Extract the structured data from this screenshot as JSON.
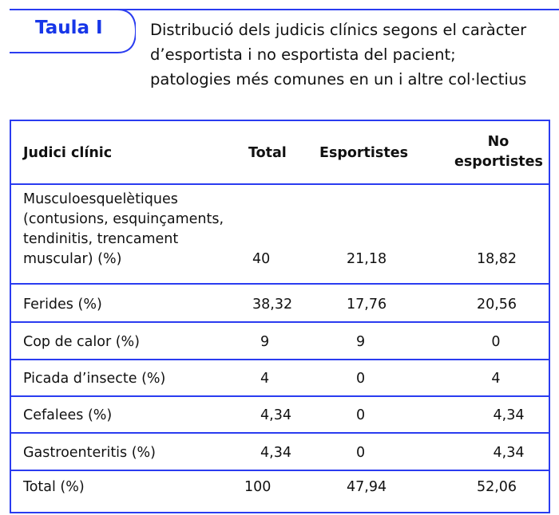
{
  "label": "Taula I",
  "caption": "Distribució dels judicis clínics segons el caràcter d’esportista i no esportista del pacient; patologies més comunes en un i altre col·lectius",
  "caption_lines": [
    "Distribució dels judicis clínics segons el caràcter",
    "d’esportista i no esportista del pacient;",
    "patologies més comunes en un i altre col·lectius"
  ],
  "headers": {
    "c0": "Judici clínic",
    "c1": "Total",
    "c2": "Esportistes",
    "c3a": "No",
    "c3b": "esportistes"
  },
  "rows": [
    {
      "c0": "Musculoesquelètiques (contusions, esquinçaments, tendinitis, trencament muscular) (%)",
      "lines": [
        "Musculoesquelètiques",
        "(contusions, esquinçaments,",
        "tendinitis, trencament",
        "muscular) (%)"
      ],
      "c1": "40",
      "c2": "21,18",
      "c3": "18,82"
    },
    {
      "c0": "Ferides (%)",
      "c1": "38,32",
      "c2": "17,76",
      "c3": "20,56"
    },
    {
      "c0": "Cop de calor (%)",
      "c1": "9",
      "c2": "9",
      "c3": "0"
    },
    {
      "c0": "Picada d’insecte (%)",
      "c1": "4",
      "c2": "0",
      "c3": "4"
    },
    {
      "c0": "Cefalees (%)",
      "c1": "4,34",
      "c2": "0",
      "c3": "4,34"
    },
    {
      "c0": "Gastroenteritis (%)",
      "c1": "4,34",
      "c2": "0",
      "c3": "4,34"
    },
    {
      "c0": "Total (%)",
      "c1": "100",
      "c2": "47,94",
      "c3": "52,06"
    }
  ],
  "colors": {
    "accent": "#2a3cf0",
    "label": "#1736e8"
  }
}
